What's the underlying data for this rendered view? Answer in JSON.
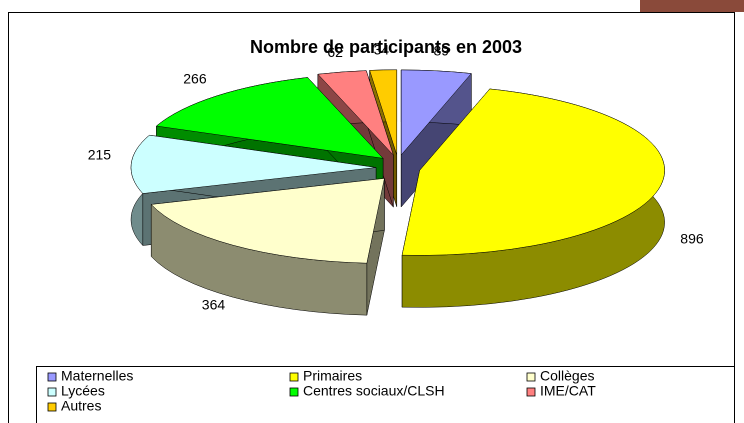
{
  "chart_data": {
    "type": "pie3d",
    "title": "Nombre de participants en 2003",
    "categories": [
      "Maternelles",
      "Primaires",
      "Collèges",
      "Lycées",
      "Centres sociaux/CLSH",
      "IME/CAT",
      "Autres"
    ],
    "values": [
      89,
      896,
      364,
      215,
      266,
      62,
      34
    ],
    "colors": [
      "#9999ff",
      "#ffff00",
      "#ffffcc",
      "#ccffff",
      "#00ff00",
      "#ff8080",
      "#ffcc00"
    ],
    "legend": "bottom"
  }
}
